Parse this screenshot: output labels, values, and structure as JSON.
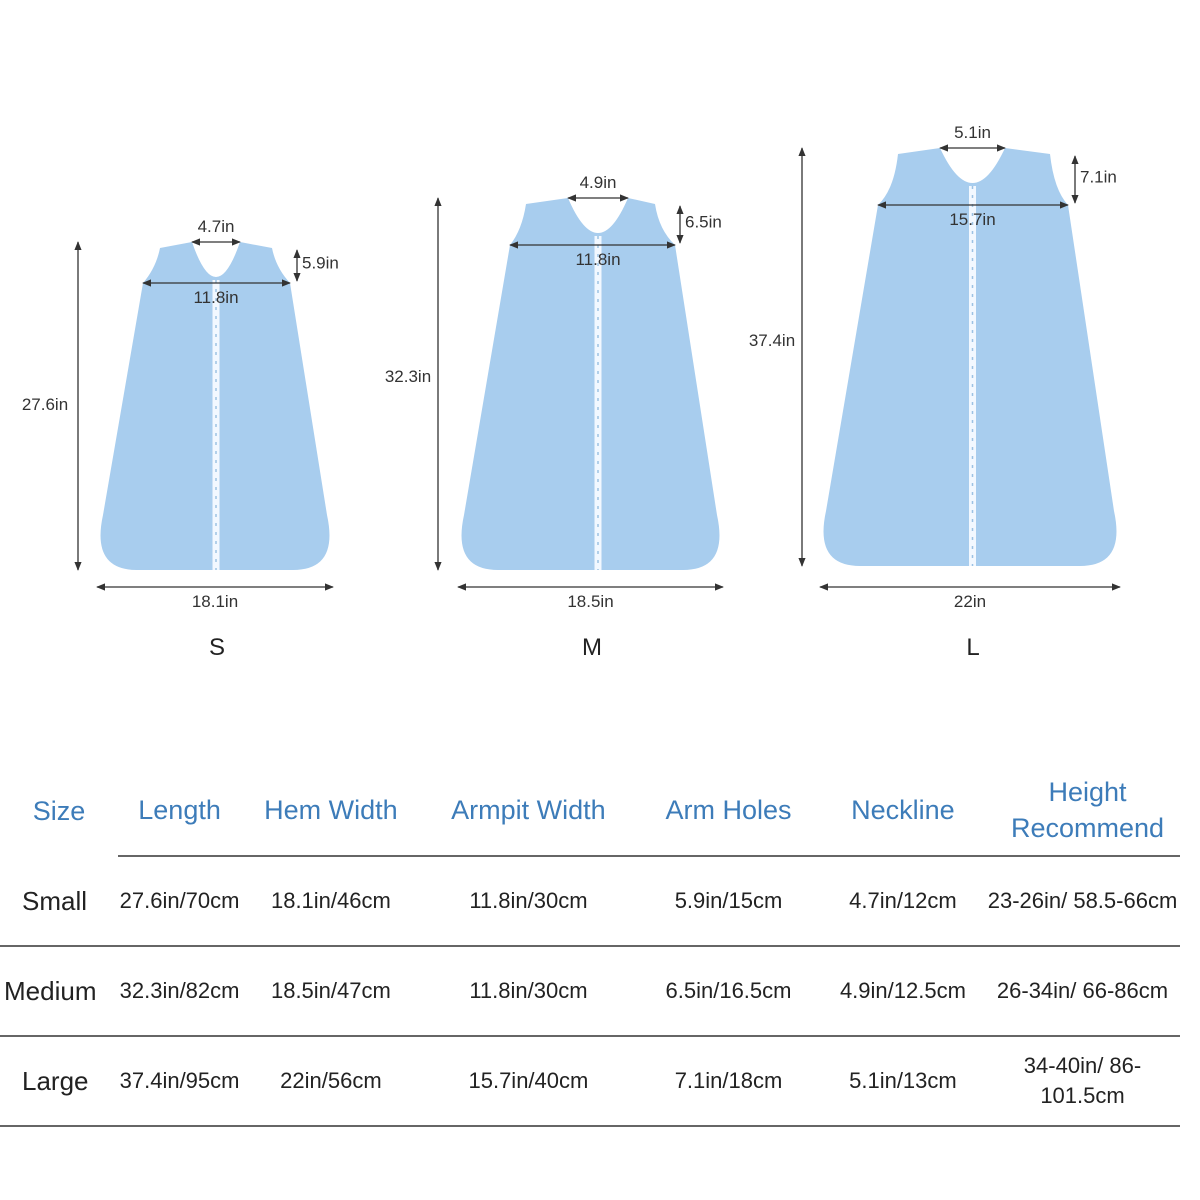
{
  "sizes": [
    {
      "label": "S",
      "length": "27.6in",
      "hem": "18.1in",
      "armpit": "11.8in",
      "armhole": "5.9in",
      "neck": "4.7in"
    },
    {
      "label": "M",
      "length": "32.3in",
      "hem": "18.5in",
      "armpit": "11.8in",
      "armhole": "6.5in",
      "neck": "4.9in"
    },
    {
      "label": "L",
      "length": "37.4in",
      "hem": "22in",
      "armpit": "15.7in",
      "armhole": "7.1in",
      "neck": "5.1in"
    }
  ],
  "colors": {
    "fabric": "#a8cdee",
    "header": "#3d7cb9",
    "line": "#333333"
  },
  "table": {
    "headers": [
      "Size",
      "Length",
      "Hem Width",
      "Armpit Width",
      "Arm Holes",
      "Neckline",
      "Height Recommend"
    ],
    "rows": [
      [
        "Small",
        "27.6in/70cm",
        "18.1in/46cm",
        "11.8in/30cm",
        "5.9in/15cm",
        "4.7in/12cm",
        "23-26in/ 58.5-66cm"
      ],
      [
        "Medium",
        "32.3in/82cm",
        "18.5in/47cm",
        "11.8in/30cm",
        "6.5in/16.5cm",
        "4.9in/12.5cm",
        "26-34in/ 66-86cm"
      ],
      [
        "Large",
        "37.4in/95cm",
        "22in/56cm",
        "15.7in/40cm",
        "7.1in/18cm",
        "5.1in/13cm",
        "34-40in/ 86-101.5cm"
      ]
    ]
  }
}
